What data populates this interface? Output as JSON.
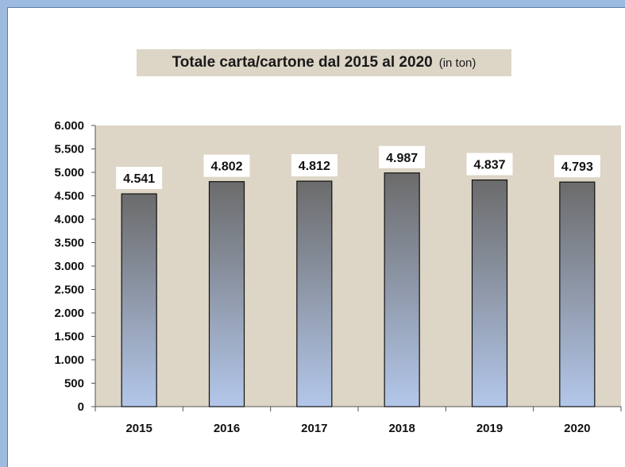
{
  "chart_data": {
    "type": "bar",
    "title": "Totale carta/cartone dal 2015 al 2020",
    "title_unit": "(in ton)",
    "categories": [
      "2015",
      "2016",
      "2017",
      "2018",
      "2019",
      "2020"
    ],
    "values": [
      4541,
      4802,
      4812,
      4987,
      4837,
      4793
    ],
    "data_labels": [
      "4.541",
      "4.802",
      "4.812",
      "4.987",
      "4.837",
      "4.793"
    ],
    "yticks": [
      0,
      500,
      1000,
      1500,
      2000,
      2500,
      3000,
      3500,
      4000,
      4500,
      5000,
      5500,
      6000
    ],
    "ytick_labels": [
      "0",
      "500",
      "1.000",
      "1.500",
      "2.000",
      "2.500",
      "3.000",
      "3.500",
      "4.000",
      "4.500",
      "5.000",
      "5.500",
      "6.000"
    ],
    "ylim": [
      0,
      6000
    ],
    "xlabel": "",
    "ylabel": "",
    "grid": false,
    "legend": "none",
    "colors": {
      "bar_top": "#6b6b6b",
      "bar_bottom": "#b3c7ea",
      "plot_background": "#ddd5c6",
      "frame": "#9dbbdf"
    }
  }
}
